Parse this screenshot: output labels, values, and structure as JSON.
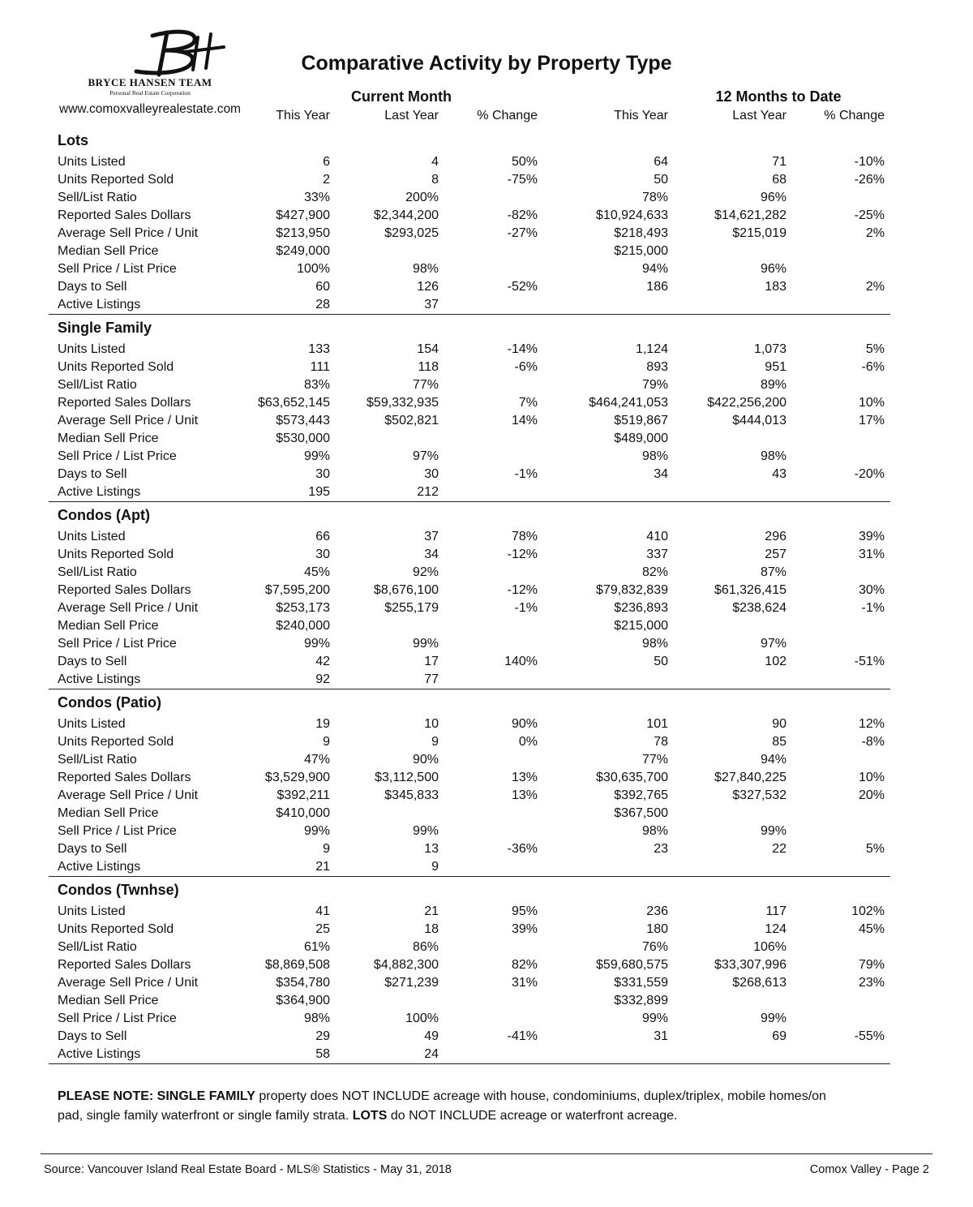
{
  "logo": {
    "mark": "BH",
    "name": "BRYCE HANSEN TEAM",
    "subtitle": "Personal Real Estate Corporation",
    "url": "www.comoxvalleyrealestate.com"
  },
  "title": "Comparative Activity by Property Type",
  "groups": {
    "current": "Current Month",
    "ytd": "12 Months to Date"
  },
  "columns": [
    "This Year",
    "Last Year",
    "% Change",
    "This Year",
    "Last Year",
    "% Change"
  ],
  "sections": [
    {
      "title": "Lots",
      "rows": [
        {
          "label": "Units Listed",
          "values": [
            "6",
            "4",
            "50%",
            "64",
            "71",
            "-10%"
          ]
        },
        {
          "label": "Units Reported Sold",
          "values": [
            "2",
            "8",
            "-75%",
            "50",
            "68",
            "-26%"
          ]
        },
        {
          "label": "Sell/List Ratio",
          "values": [
            "33%",
            "200%",
            "",
            "78%",
            "96%",
            ""
          ]
        },
        {
          "label": "Reported Sales Dollars",
          "values": [
            "$427,900",
            "$2,344,200",
            "-82%",
            "$10,924,633",
            "$14,621,282",
            "-25%"
          ]
        },
        {
          "label": "Average Sell Price / Unit",
          "values": [
            "$213,950",
            "$293,025",
            "-27%",
            "$218,493",
            "$215,019",
            "2%"
          ]
        },
        {
          "label": "Median Sell Price",
          "values": [
            "$249,000",
            "",
            "",
            "$215,000",
            "",
            ""
          ]
        },
        {
          "label": "Sell Price / List Price",
          "values": [
            "100%",
            "98%",
            "",
            "94%",
            "96%",
            ""
          ]
        },
        {
          "label": "Days to Sell",
          "values": [
            "60",
            "126",
            "-52%",
            "186",
            "183",
            "2%"
          ]
        },
        {
          "label": "Active Listings",
          "values": [
            "28",
            "37",
            "",
            "",
            "",
            ""
          ]
        }
      ]
    },
    {
      "title": "Single Family",
      "rows": [
        {
          "label": "Units Listed",
          "values": [
            "133",
            "154",
            "-14%",
            "1,124",
            "1,073",
            "5%"
          ]
        },
        {
          "label": "Units Reported Sold",
          "values": [
            "111",
            "118",
            "-6%",
            "893",
            "951",
            "-6%"
          ]
        },
        {
          "label": "Sell/List Ratio",
          "values": [
            "83%",
            "77%",
            "",
            "79%",
            "89%",
            ""
          ]
        },
        {
          "label": "Reported Sales Dollars",
          "values": [
            "$63,652,145",
            "$59,332,935",
            "7%",
            "$464,241,053",
            "$422,256,200",
            "10%"
          ]
        },
        {
          "label": "Average Sell Price / Unit",
          "values": [
            "$573,443",
            "$502,821",
            "14%",
            "$519,867",
            "$444,013",
            "17%"
          ]
        },
        {
          "label": "Median Sell Price",
          "values": [
            "$530,000",
            "",
            "",
            "$489,000",
            "",
            ""
          ]
        },
        {
          "label": "Sell Price / List Price",
          "values": [
            "99%",
            "97%",
            "",
            "98%",
            "98%",
            ""
          ]
        },
        {
          "label": "Days to Sell",
          "values": [
            "30",
            "30",
            "-1%",
            "34",
            "43",
            "-20%"
          ]
        },
        {
          "label": "Active Listings",
          "values": [
            "195",
            "212",
            "",
            "",
            "",
            ""
          ]
        }
      ]
    },
    {
      "title": "Condos (Apt)",
      "rows": [
        {
          "label": "Units Listed",
          "values": [
            "66",
            "37",
            "78%",
            "410",
            "296",
            "39%"
          ]
        },
        {
          "label": "Units Reported Sold",
          "values": [
            "30",
            "34",
            "-12%",
            "337",
            "257",
            "31%"
          ]
        },
        {
          "label": "Sell/List Ratio",
          "values": [
            "45%",
            "92%",
            "",
            "82%",
            "87%",
            ""
          ]
        },
        {
          "label": "Reported Sales Dollars",
          "values": [
            "$7,595,200",
            "$8,676,100",
            "-12%",
            "$79,832,839",
            "$61,326,415",
            "30%"
          ]
        },
        {
          "label": "Average Sell Price / Unit",
          "values": [
            "$253,173",
            "$255,179",
            "-1%",
            "$236,893",
            "$238,624",
            "-1%"
          ]
        },
        {
          "label": "Median Sell Price",
          "values": [
            "$240,000",
            "",
            "",
            "$215,000",
            "",
            ""
          ]
        },
        {
          "label": "Sell Price / List Price",
          "values": [
            "99%",
            "99%",
            "",
            "98%",
            "97%",
            ""
          ]
        },
        {
          "label": "Days to Sell",
          "values": [
            "42",
            "17",
            "140%",
            "50",
            "102",
            "-51%"
          ]
        },
        {
          "label": "Active Listings",
          "values": [
            "92",
            "77",
            "",
            "",
            "",
            ""
          ]
        }
      ]
    },
    {
      "title": "Condos (Patio)",
      "rows": [
        {
          "label": "Units Listed",
          "values": [
            "19",
            "10",
            "90%",
            "101",
            "90",
            "12%"
          ]
        },
        {
          "label": "Units Reported Sold",
          "values": [
            "9",
            "9",
            "0%",
            "78",
            "85",
            "-8%"
          ]
        },
        {
          "label": "Sell/List Ratio",
          "values": [
            "47%",
            "90%",
            "",
            "77%",
            "94%",
            ""
          ]
        },
        {
          "label": "Reported Sales Dollars",
          "values": [
            "$3,529,900",
            "$3,112,500",
            "13%",
            "$30,635,700",
            "$27,840,225",
            "10%"
          ]
        },
        {
          "label": "Average Sell Price / Unit",
          "values": [
            "$392,211",
            "$345,833",
            "13%",
            "$392,765",
            "$327,532",
            "20%"
          ]
        },
        {
          "label": "Median Sell Price",
          "values": [
            "$410,000",
            "",
            "",
            "$367,500",
            "",
            ""
          ]
        },
        {
          "label": "Sell Price / List Price",
          "values": [
            "99%",
            "99%",
            "",
            "98%",
            "99%",
            ""
          ]
        },
        {
          "label": "Days to Sell",
          "values": [
            "9",
            "13",
            "-36%",
            "23",
            "22",
            "5%"
          ]
        },
        {
          "label": "Active Listings",
          "values": [
            "21",
            "9",
            "",
            "",
            "",
            ""
          ]
        }
      ]
    },
    {
      "title": "Condos (Twnhse)",
      "rows": [
        {
          "label": "Units Listed",
          "values": [
            "41",
            "21",
            "95%",
            "236",
            "117",
            "102%"
          ]
        },
        {
          "label": "Units Reported Sold",
          "values": [
            "25",
            "18",
            "39%",
            "180",
            "124",
            "45%"
          ]
        },
        {
          "label": "Sell/List Ratio",
          "values": [
            "61%",
            "86%",
            "",
            "76%",
            "106%",
            ""
          ]
        },
        {
          "label": "Reported Sales Dollars",
          "values": [
            "$8,869,508",
            "$4,882,300",
            "82%",
            "$59,680,575",
            "$33,307,996",
            "79%"
          ]
        },
        {
          "label": "Average Sell Price / Unit",
          "values": [
            "$354,780",
            "$271,239",
            "31%",
            "$331,559",
            "$268,613",
            "23%"
          ]
        },
        {
          "label": "Median Sell Price",
          "values": [
            "$364,900",
            "",
            "",
            "$332,899",
            "",
            ""
          ]
        },
        {
          "label": "Sell Price / List Price",
          "values": [
            "98%",
            "100%",
            "",
            "99%",
            "99%",
            ""
          ]
        },
        {
          "label": "Days to Sell",
          "values": [
            "29",
            "49",
            "-41%",
            "31",
            "69",
            "-55%"
          ]
        },
        {
          "label": "Active Listings",
          "values": [
            "58",
            "24",
            "",
            "",
            "",
            ""
          ]
        }
      ]
    }
  ],
  "note": {
    "lead": "PLEASE NOTE: SINGLE FAMILY",
    "text1": " property does NOT INCLUDE acreage with house, condominiums, duplex/triplex, mobile homes/on pad, single family waterfront or single family strata. ",
    "lots": "LOTS",
    "text2": " do NOT INCLUDE acreage or waterfront acreage."
  },
  "footer": {
    "source": "Source: Vancouver Island Real Estate Board - MLS® Statistics - May 31, 2018",
    "page": "Comox Valley - Page 2"
  }
}
